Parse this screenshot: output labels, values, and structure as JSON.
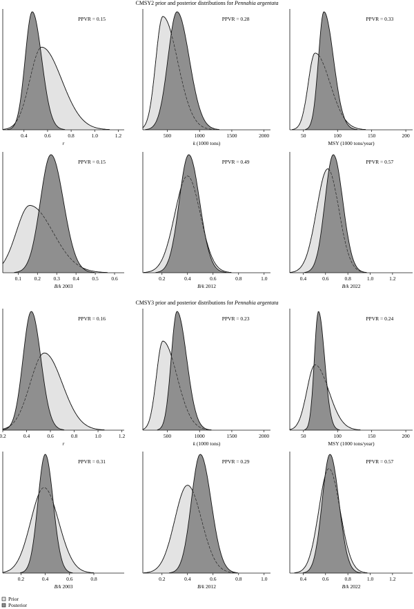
{
  "colors": {
    "prior_fill": "#e3e3e3",
    "posterior_fill": "#8f8f8f",
    "stroke": "#111111"
  },
  "sections": [
    {
      "title_prefix": "CMSY2 prior and posterior distributions for ",
      "title_species": "Pennahia argentata"
    },
    {
      "title_prefix": "CMSY3 prior and posterior distributions for ",
      "title_species": "Pennahia argentata"
    }
  ],
  "legend": {
    "prior": "Prior",
    "posterior": "Posterior"
  },
  "chart_data": [
    {
      "id": "cmsy2-r",
      "type": "area",
      "xlabel": "r",
      "xlabel_italic": true,
      "ppvr": "PPVR = 0.15",
      "xlim": [
        0.22,
        1.25
      ],
      "xticks": [
        "0.4",
        "0.6",
        "0.8",
        "1.0",
        "1.2"
      ],
      "prior": {
        "mode": 0.55,
        "sd_left": 0.1,
        "sd_right": 0.17,
        "peak": 0.7
      },
      "posterior": {
        "mode": 0.47,
        "sd_left": 0.06,
        "sd_right": 0.08,
        "peak": 1.0
      }
    },
    {
      "id": "cmsy2-k",
      "type": "area",
      "xlabel": "k (1000 tons)",
      "xlabel_italic_part": "k",
      "ppvr": "PPVR = 0.28",
      "xlim": [
        120,
        2100
      ],
      "xticks": [
        "500",
        "1000",
        "1500",
        "2000"
      ],
      "prior": {
        "mode": 430,
        "sd_left": 110,
        "sd_right": 230,
        "peak": 0.96
      },
      "posterior": {
        "mode": 650,
        "sd_left": 140,
        "sd_right": 190,
        "peak": 1.0
      }
    },
    {
      "id": "cmsy2-msy",
      "type": "area",
      "xlabel": "MSY (1000 tons/year)",
      "ppvr": "PPVR = 0.33",
      "xlim": [
        30,
        210
      ],
      "xticks": [
        "50",
        "100",
        "150",
        "200"
      ],
      "prior": {
        "mode": 67,
        "sd_left": 10,
        "sd_right": 22,
        "peak": 0.65
      },
      "posterior": {
        "mode": 80,
        "sd_left": 8,
        "sd_right": 14,
        "peak": 1.0
      }
    },
    {
      "id": "cmsy2-bk2003",
      "type": "area",
      "xlabel": "B/k 2003",
      "xlabel_italic_part": "B/k",
      "ppvr": "PPVR = 0.15",
      "xlim": [
        0.02,
        0.65
      ],
      "xticks": [
        "0.1",
        "0.2",
        "0.3",
        "0.4",
        "0.5",
        "0.6"
      ],
      "prior": {
        "mode": 0.16,
        "sd_left": 0.07,
        "sd_right": 0.12,
        "peak": 0.57
      },
      "posterior": {
        "mode": 0.27,
        "sd_left": 0.055,
        "sd_right": 0.065,
        "peak": 1.0
      }
    },
    {
      "id": "cmsy2-bk2012",
      "type": "area",
      "xlabel": "B/k 2012",
      "xlabel_italic_part": "B/k",
      "ppvr": "PPVR = 0.49",
      "xlim": [
        0.05,
        1.05
      ],
      "xticks": [
        "0.2",
        "0.4",
        "0.6",
        "0.8",
        "1.0"
      ],
      "prior": {
        "mode": 0.4,
        "sd_left": 0.1,
        "sd_right": 0.1,
        "peak": 0.82
      },
      "posterior": {
        "mode": 0.41,
        "sd_left": 0.075,
        "sd_right": 0.085,
        "peak": 1.0
      }
    },
    {
      "id": "cmsy2-bk2022",
      "type": "area",
      "xlabel": "B/k 2022",
      "xlabel_italic_part": "B/k",
      "ppvr": "PPVR = 0.57",
      "xlim": [
        0.28,
        1.38
      ],
      "xticks": [
        "0.4",
        "0.6",
        "0.8",
        "1.0",
        "1.2"
      ],
      "prior": {
        "mode": 0.62,
        "sd_left": 0.1,
        "sd_right": 0.1,
        "peak": 0.88
      },
      "posterior": {
        "mode": 0.67,
        "sd_left": 0.075,
        "sd_right": 0.085,
        "peak": 1.0
      }
    },
    {
      "id": "cmsy3-r",
      "type": "area",
      "xlabel": "r",
      "xlabel_italic": true,
      "ppvr": "PPVR = 0.16",
      "xlim": [
        0.2,
        1.22
      ],
      "xticks": [
        "0.2",
        "0.4",
        "0.6",
        "0.8",
        "1.0",
        "1.2"
      ],
      "prior": {
        "mode": 0.55,
        "sd_left": 0.12,
        "sd_right": 0.15,
        "peak": 0.65
      },
      "posterior": {
        "mode": 0.44,
        "sd_left": 0.07,
        "sd_right": 0.08,
        "peak": 1.0
      }
    },
    {
      "id": "cmsy3-k",
      "type": "area",
      "xlabel": "k (1000 tons)",
      "xlabel_italic_part": "k",
      "ppvr": "PPVR = 0.23",
      "xlim": [
        120,
        2100
      ],
      "xticks": [
        "500",
        "1000",
        "1500",
        "2000"
      ],
      "prior": {
        "mode": 430,
        "sd_left": 100,
        "sd_right": 220,
        "peak": 0.75
      },
      "posterior": {
        "mode": 650,
        "sd_left": 90,
        "sd_right": 150,
        "peak": 1.0
      }
    },
    {
      "id": "cmsy3-msy",
      "type": "area",
      "xlabel": "MSY (1000 tons/year)",
      "ppvr": "PPVR = 0.24",
      "xlim": [
        30,
        210
      ],
      "xticks": [
        "50",
        "100",
        "150",
        "200"
      ],
      "prior": {
        "mode": 67,
        "sd_left": 12,
        "sd_right": 20,
        "peak": 0.55
      },
      "posterior": {
        "mode": 72,
        "sd_left": 6,
        "sd_right": 9,
        "peak": 1.0
      }
    },
    {
      "id": "cmsy3-bk2003",
      "type": "area",
      "xlabel": "B/k 2003",
      "xlabel_italic_part": "B/k",
      "ppvr": "PPVR = 0.31",
      "xlim": [
        0.05,
        1.05
      ],
      "xticks": [
        "0.2",
        "0.4",
        "0.6",
        "0.8"
      ],
      "prior": {
        "mode": 0.39,
        "sd_left": 0.11,
        "sd_right": 0.12,
        "peak": 0.72
      },
      "posterior": {
        "mode": 0.4,
        "sd_left": 0.06,
        "sd_right": 0.065,
        "peak": 1.0
      }
    },
    {
      "id": "cmsy3-bk2012",
      "type": "area",
      "xlabel": "B/k 2012",
      "xlabel_italic_part": "B/k",
      "ppvr": "PPVR = 0.29",
      "xlim": [
        0.05,
        1.05
      ],
      "xticks": [
        "0.2",
        "0.4",
        "0.6",
        "0.8",
        "1.0"
      ],
      "prior": {
        "mode": 0.4,
        "sd_left": 0.1,
        "sd_right": 0.11,
        "peak": 0.74
      },
      "posterior": {
        "mode": 0.5,
        "sd_left": 0.07,
        "sd_right": 0.085,
        "peak": 1.0
      }
    },
    {
      "id": "cmsy3-bk2022",
      "type": "area",
      "xlabel": "B/k 2022",
      "xlabel_italic_part": "B/k",
      "ppvr": "PPVR = 0.57",
      "xlim": [
        0.28,
        1.38
      ],
      "xticks": [
        "0.4",
        "0.6",
        "0.8",
        "1.0",
        "1.2"
      ],
      "prior": {
        "mode": 0.63,
        "sd_left": 0.09,
        "sd_right": 0.1,
        "peak": 0.88
      },
      "posterior": {
        "mode": 0.64,
        "sd_left": 0.07,
        "sd_right": 0.08,
        "peak": 1.0
      }
    }
  ]
}
